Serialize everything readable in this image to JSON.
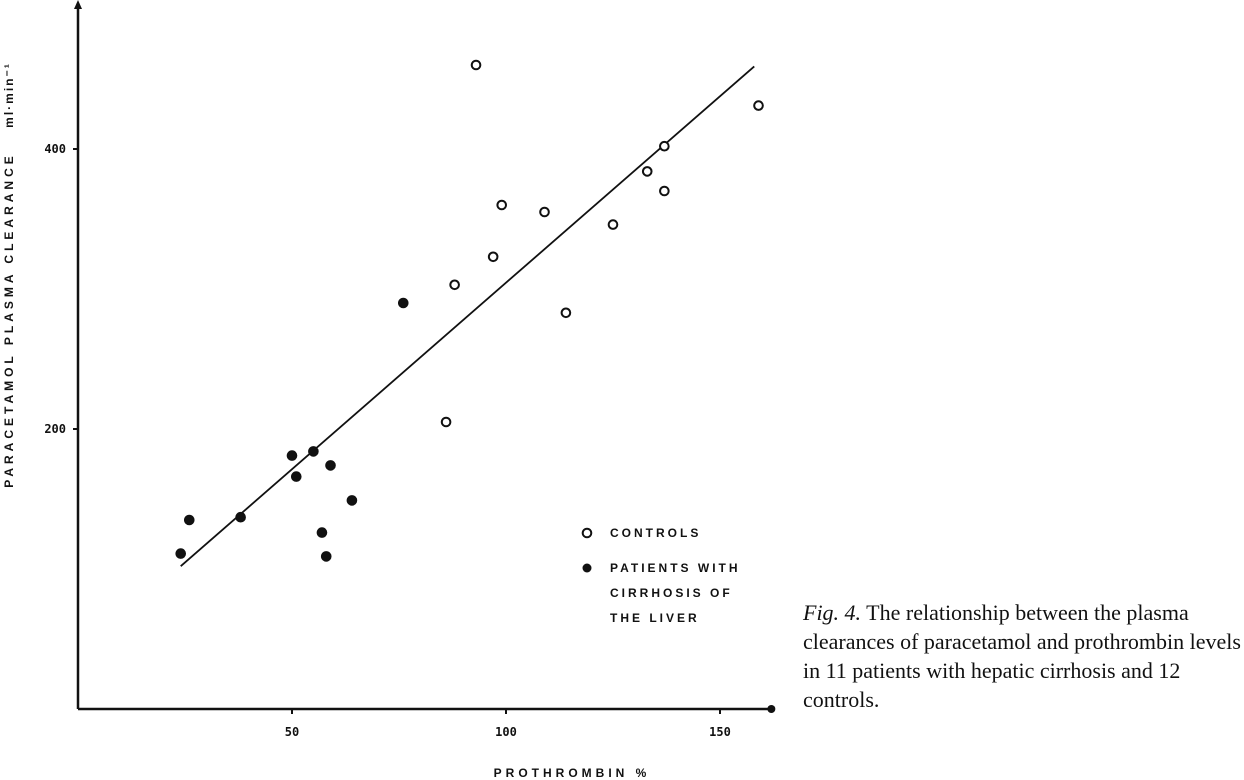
{
  "chart_data": {
    "type": "scatter",
    "title": "",
    "xlabel": "PROTHROMBIN %",
    "ylabel": "PARACETAMOL PLASMA CLEARANCE",
    "ylabel_unit": "ml·min⁻¹",
    "xlim": [
      0,
      162
    ],
    "ylim": [
      0,
      480
    ],
    "x_ticks": [
      50,
      100,
      150
    ],
    "y_ticks": [
      200,
      400
    ],
    "x_tick_labels": [
      "50",
      "100",
      "150"
    ],
    "y_tick_labels": [
      "200",
      "400"
    ],
    "grid": false,
    "legend_position": "bottom-right",
    "series": [
      {
        "name": "CONTROLS",
        "marker": "open-circle",
        "points": [
          [
            93,
            460
          ],
          [
            159,
            431
          ],
          [
            137,
            402
          ],
          [
            133,
            384
          ],
          [
            137,
            370
          ],
          [
            99,
            360
          ],
          [
            109,
            355
          ],
          [
            125,
            346
          ],
          [
            97,
            323
          ],
          [
            88,
            303
          ],
          [
            114,
            283
          ],
          [
            86,
            205
          ]
        ]
      },
      {
        "name": "PATIENTS WITH CIRRHOSIS OF THE LIVER",
        "marker": "filled-circle",
        "points": [
          [
            76,
            290
          ],
          [
            50,
            181
          ],
          [
            55,
            184
          ],
          [
            59,
            174
          ],
          [
            51,
            166
          ],
          [
            64,
            149
          ],
          [
            26,
            135
          ],
          [
            38,
            137
          ],
          [
            57,
            126
          ],
          [
            24,
            111
          ],
          [
            58,
            109
          ]
        ]
      }
    ],
    "regression_line": {
      "x": [
        24,
        158
      ],
      "y": [
        102,
        459
      ]
    }
  },
  "legend": {
    "controls_label": "CONTROLS",
    "patients_label_lines": [
      "PATIENTS WITH",
      "CIRRHOSIS OF",
      "THE LIVER"
    ]
  },
  "caption": {
    "fig_label": "Fig. 4.",
    "text": " The relationship between the plasma clearances of paracetamol and prothrombin levels in 11 patients with hepatic cirrhosis and 12 controls."
  }
}
